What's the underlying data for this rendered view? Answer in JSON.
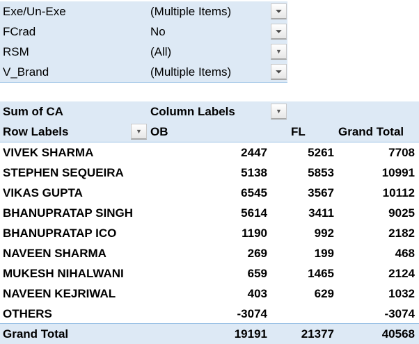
{
  "filters": [
    {
      "field": "Exe/Un-Exe",
      "value": "(Multiple Items)",
      "filtered": true
    },
    {
      "field": "FCrad",
      "value": "No",
      "filtered": true
    },
    {
      "field": "RSM",
      "value": "(All)",
      "filtered": false
    },
    {
      "field": "V_Brand",
      "value": "(Multiple Items)",
      "filtered": true
    }
  ],
  "pivot": {
    "value_label": "Sum of CA",
    "column_labels": "Column Labels",
    "row_labels": "Row Labels",
    "columns": [
      "OB",
      "FL",
      "Grand Total"
    ],
    "rows": [
      {
        "label": "VIVEK SHARMA",
        "ob": "2447",
        "fl": "5261",
        "total": "7708"
      },
      {
        "label": "STEPHEN SEQUEIRA",
        "ob": "5138",
        "fl": "5853",
        "total": "10991"
      },
      {
        "label": "VIKAS GUPTA",
        "ob": "6545",
        "fl": "3567",
        "total": "10112"
      },
      {
        "label": "BHANUPRATAP SINGH",
        "ob": "5614",
        "fl": "3411",
        "total": "9025"
      },
      {
        "label": "BHANUPRATAP ICO",
        "ob": "1190",
        "fl": "992",
        "total": "2182"
      },
      {
        "label": "NAVEEN SHARMA",
        "ob": "269",
        "fl": "199",
        "total": "468"
      },
      {
        "label": "MUKESH NIHALWANI",
        "ob": "659",
        "fl": "1465",
        "total": "2124"
      },
      {
        "label": "NAVEEN KEJRIWAL",
        "ob": "403",
        "fl": "629",
        "total": "1032"
      },
      {
        "label": "OTHERS",
        "ob": "-3074",
        "fl": "",
        "total": "-3074"
      }
    ],
    "grand_total": {
      "label": "Grand Total",
      "ob": "19191",
      "fl": "21377",
      "total": "40568"
    }
  },
  "icons": {
    "filtered": "filter-dropdown-icon",
    "unfiltered": "dropdown-arrow-icon"
  }
}
